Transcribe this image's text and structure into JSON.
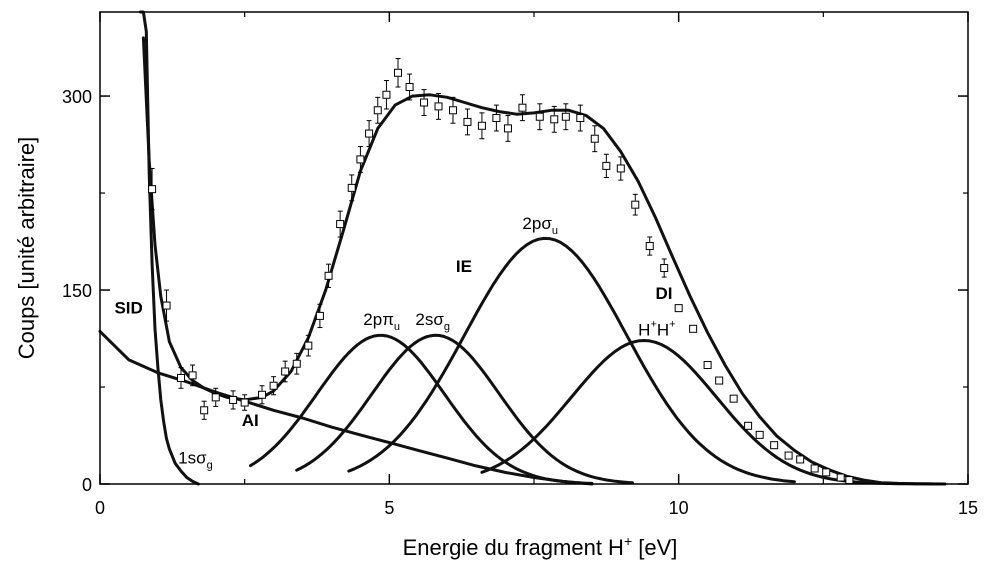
{
  "chart_data": {
    "type": "line",
    "xlabel": "Energie du fragment H",
    "xlabel_sup": "+",
    "xlabel_unit": "[eV]",
    "ylabel": "Coups [unité arbitraire]",
    "xlim": [
      0,
      15
    ],
    "ylim": [
      0,
      365
    ],
    "x_ticks": [
      0,
      5,
      10,
      15
    ],
    "x_tick_labels": [
      "0",
      "5",
      "10",
      "15"
    ],
    "y_ticks": [
      0,
      150,
      300
    ],
    "y_tick_labels": [
      "0",
      "150",
      "300"
    ],
    "grid": false,
    "measured_points": {
      "x": [
        0.9,
        1.15,
        1.4,
        1.6,
        1.8,
        2.0,
        2.3,
        2.5,
        2.8,
        3.0,
        3.2,
        3.4,
        3.6,
        3.8,
        3.95,
        4.15,
        4.35,
        4.5,
        4.65,
        4.8,
        4.95,
        5.15,
        5.35,
        5.6,
        5.85,
        6.1,
        6.35,
        6.6,
        6.85,
        7.05,
        7.3,
        7.6,
        7.85,
        8.05,
        8.3,
        8.55,
        8.75,
        9.0,
        9.25,
        9.5,
        9.75,
        10.0,
        10.25,
        10.5,
        10.7,
        10.95,
        11.2,
        11.4,
        11.65,
        11.9,
        12.1,
        12.35,
        12.55,
        12.8,
        12.95
      ],
      "y": [
        228,
        138,
        82,
        84,
        57,
        67,
        65,
        63,
        69,
        76,
        87,
        93,
        107,
        130,
        161,
        201,
        229,
        251,
        271,
        289,
        301,
        318,
        307,
        295,
        292,
        289,
        280,
        277,
        283,
        275,
        291,
        284,
        282,
        284,
        283,
        267,
        246,
        244,
        216,
        184,
        167,
        136,
        120,
        92,
        80,
        66,
        45,
        38,
        30,
        22,
        19,
        12,
        9,
        5,
        3
      ],
      "err": [
        16,
        12,
        8,
        8,
        7,
        7,
        7,
        6,
        7,
        7,
        8,
        8,
        8,
        9,
        9,
        10,
        10,
        10,
        10,
        10,
        11,
        11,
        10,
        10,
        10,
        10,
        10,
        10,
        10,
        10,
        10,
        10,
        10,
        10,
        10,
        10,
        9,
        9,
        8,
        7,
        7,
        0,
        0,
        0,
        0,
        0,
        0,
        0,
        0,
        0,
        0,
        0,
        0,
        0,
        0
      ]
    },
    "fit_curve": {
      "x": [
        0.75,
        0.85,
        0.95,
        1.05,
        1.2,
        1.4,
        1.6,
        1.8,
        2.0,
        2.2,
        2.5,
        2.8,
        3.0,
        3.3,
        3.6,
        3.9,
        4.2,
        4.5,
        4.8,
        5.1,
        5.4,
        5.7,
        6.0,
        6.3,
        6.6,
        6.9,
        7.2,
        7.5,
        7.8,
        8.1,
        8.4,
        8.7,
        9.0,
        9.3,
        9.6,
        9.9,
        10.2,
        10.5,
        10.8,
        11.1,
        11.4,
        11.7,
        12.0,
        12.3,
        12.6,
        12.9,
        13.2,
        13.5,
        13.8,
        14.1,
        14.4,
        14.6
      ],
      "y": [
        345,
        250,
        185,
        145,
        110,
        90,
        80,
        74,
        70,
        67,
        65,
        67,
        72,
        87,
        113,
        150,
        195,
        242,
        275,
        293,
        300,
        301,
        299,
        295,
        291,
        288,
        286,
        287,
        289,
        289,
        285,
        275,
        257,
        234,
        206,
        175,
        145,
        117,
        92,
        70,
        52,
        37,
        26,
        17,
        11,
        6,
        3,
        1,
        0.5,
        0.2,
        0.1,
        0
      ]
    },
    "sid_curve": {
      "x": [
        0.0,
        0.5,
        1.0,
        1.5,
        2.0,
        2.5,
        3.0,
        3.5,
        4.0,
        4.5,
        5.0,
        5.5,
        6.0,
        6.5,
        7.0,
        7.5,
        8.0,
        8.5
      ],
      "y": [
        118,
        96,
        86,
        79,
        71,
        64,
        57,
        51,
        44,
        38,
        32,
        26,
        20,
        14,
        9,
        5,
        2,
        0
      ]
    },
    "components": [
      {
        "label": "1sσ",
        "sub": "g",
        "x": [
          0.7,
          0.75,
          0.8,
          0.85,
          0.9,
          0.95,
          1.0,
          1.05,
          1.1,
          1.15,
          1.2,
          1.3,
          1.4,
          1.5,
          1.6,
          1.7
        ],
        "y": [
          700,
          500,
          350,
          240,
          170,
          120,
          90,
          65,
          48,
          35,
          27,
          16,
          10,
          5,
          2,
          0
        ]
      },
      {
        "label": "2pπ",
        "sub": "u",
        "mu": 4.85,
        "sigma": 1.1,
        "amp": 115,
        "xrange": [
          2.6,
          8.5
        ]
      },
      {
        "label": "2sσ",
        "sub": "g",
        "mu": 5.8,
        "sigma": 1.1,
        "amp": 115,
        "xrange": [
          3.4,
          9.2
        ]
      },
      {
        "label": "2pσ",
        "sub": "u",
        "mu": 7.7,
        "sigma": 1.4,
        "amp": 190,
        "xrange": [
          4.3,
          12.0
        ]
      },
      {
        "label": "H",
        "sup1": "+",
        "label2": "H",
        "sup2": "+",
        "mu": 9.4,
        "sigma": 1.25,
        "amp": 111,
        "xrange": [
          6.6,
          14.6
        ]
      }
    ],
    "annotations": [
      {
        "text": "SID",
        "bold": true,
        "x": 0.25,
        "y": 132
      },
      {
        "text": "AI",
        "bold": true,
        "x": 2.45,
        "y": 45
      },
      {
        "text": "IE",
        "bold": true,
        "x": 6.15,
        "y": 164
      },
      {
        "text": "DI",
        "bold": true,
        "x": 9.6,
        "y": 143
      }
    ],
    "colors": {
      "lines": "#111111",
      "axes": "#000000",
      "markers": "#000000",
      "background": "#ffffff"
    }
  }
}
